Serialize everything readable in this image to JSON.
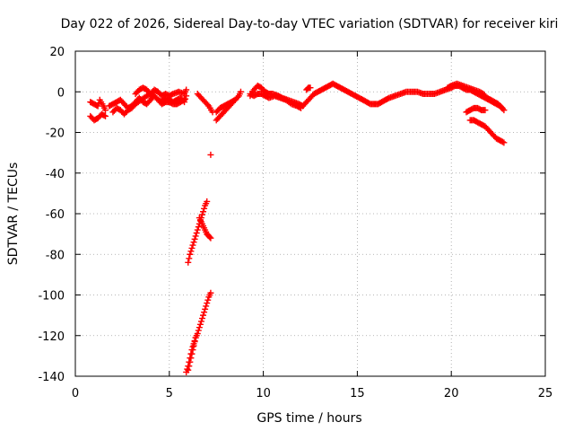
{
  "chart_data": {
    "type": "scatter",
    "title": "Day 022 of 2026, Sidereal Day-to-day VTEC variation (SDTVAR) for receiver kiri",
    "xlabel": "GPS time / hours",
    "ylabel": "SDTVAR / TECUs",
    "xlim": [
      0,
      25
    ],
    "ylim": [
      -140,
      20
    ],
    "xticks": [
      0,
      5,
      10,
      15,
      20,
      25
    ],
    "yticks": [
      20,
      0,
      -20,
      -40,
      -60,
      -80,
      -100,
      -120,
      -140
    ],
    "grid": true,
    "marker": "+",
    "color": "#ff0000",
    "series": [
      {
        "segments": [
          [
            [
              0.8,
              -5
            ],
            [
              1.0,
              -6
            ],
            [
              1.2,
              -7
            ],
            [
              1.3,
              -4
            ],
            [
              1.5,
              -7
            ],
            [
              1.6,
              -9
            ]
          ],
          [
            [
              0.8,
              -12
            ],
            [
              1.0,
              -14
            ],
            [
              1.2,
              -13
            ],
            [
              1.4,
              -11
            ],
            [
              1.6,
              -12
            ]
          ],
          [
            [
              1.8,
              -7
            ],
            [
              2.0,
              -6
            ],
            [
              2.2,
              -5
            ],
            [
              2.4,
              -4
            ],
            [
              2.6,
              -6
            ],
            [
              2.8,
              -8
            ],
            [
              3.0,
              -7
            ],
            [
              3.2,
              -5
            ],
            [
              3.4,
              -3
            ],
            [
              3.6,
              -5
            ],
            [
              3.8,
              -6
            ],
            [
              4.0,
              -4
            ],
            [
              4.2,
              -2
            ],
            [
              4.4,
              -4
            ],
            [
              4.6,
              -5
            ],
            [
              4.8,
              -3
            ],
            [
              5.0,
              -4
            ],
            [
              5.2,
              -5
            ],
            [
              5.4,
              -4
            ],
            [
              5.6,
              -3
            ],
            [
              5.8,
              -5
            ],
            [
              5.9,
              -2
            ]
          ],
          [
            [
              2.0,
              -10
            ],
            [
              2.2,
              -8
            ],
            [
              2.4,
              -9
            ],
            [
              2.6,
              -11
            ],
            [
              2.8,
              -9
            ],
            [
              3.0,
              -8
            ],
            [
              3.2,
              -6
            ],
            [
              3.5,
              -4
            ],
            [
              3.8,
              -2
            ],
            [
              4.0,
              -1
            ],
            [
              4.2,
              -2
            ],
            [
              4.4,
              -4
            ],
            [
              4.6,
              -6
            ],
            [
              4.8,
              -5
            ],
            [
              5.0,
              -5
            ],
            [
              5.2,
              -6
            ],
            [
              5.4,
              -6
            ],
            [
              5.6,
              -5
            ],
            [
              5.8,
              -4
            ]
          ],
          [
            [
              3.2,
              -1
            ],
            [
              3.4,
              1
            ],
            [
              3.6,
              2
            ],
            [
              3.8,
              1
            ],
            [
              4.0,
              -1
            ],
            [
              4.2,
              1
            ],
            [
              4.4,
              0
            ],
            [
              4.6,
              -2
            ],
            [
              4.8,
              -1
            ],
            [
              5.0,
              -2
            ],
            [
              5.2,
              -1
            ],
            [
              5.5,
              0
            ],
            [
              5.8,
              -1
            ],
            [
              5.9,
              1
            ]
          ],
          [
            [
              6.5,
              -1
            ],
            [
              6.7,
              -3
            ],
            [
              6.9,
              -5
            ],
            [
              7.1,
              -7
            ],
            [
              7.3,
              -10
            ]
          ],
          [
            [
              7.5,
              -14
            ],
            [
              7.7,
              -12
            ],
            [
              7.9,
              -10
            ],
            [
              8.1,
              -8
            ],
            [
              8.3,
              -6
            ],
            [
              8.5,
              -4
            ],
            [
              8.7,
              -2
            ],
            [
              8.8,
              0
            ]
          ],
          [
            [
              7.5,
              -10
            ],
            [
              7.7,
              -8
            ],
            [
              7.9,
              -7
            ],
            [
              8.1,
              -6
            ],
            [
              8.3,
              -5
            ],
            [
              8.5,
              -4
            ]
          ],
          [
            [
              7.2,
              -31
            ]
          ],
          [
            [
              6.0,
              -84
            ],
            [
              6.1,
              -80
            ],
            [
              6.2,
              -77
            ],
            [
              6.3,
              -74
            ],
            [
              6.4,
              -71
            ],
            [
              6.5,
              -68
            ],
            [
              6.6,
              -65
            ],
            [
              6.7,
              -62
            ],
            [
              6.8,
              -59
            ],
            [
              6.9,
              -56
            ],
            [
              7.0,
              -54
            ]
          ],
          [
            [
              6.6,
              -62
            ],
            [
              6.7,
              -64
            ],
            [
              6.8,
              -66
            ],
            [
              6.9,
              -68
            ],
            [
              7.0,
              -70
            ],
            [
              7.1,
              -71
            ],
            [
              7.2,
              -72
            ]
          ],
          [
            [
              5.9,
              -138
            ],
            [
              6.0,
              -135
            ],
            [
              6.1,
              -131
            ],
            [
              6.2,
              -127
            ],
            [
              6.3,
              -124
            ],
            [
              6.4,
              -121
            ],
            [
              6.5,
              -119
            ],
            [
              6.6,
              -116
            ],
            [
              6.7,
              -113
            ],
            [
              6.8,
              -110
            ],
            [
              6.9,
              -107
            ],
            [
              7.0,
              -104
            ],
            [
              7.1,
              -101
            ],
            [
              7.2,
              -99
            ]
          ],
          [
            [
              6.0,
              -137
            ],
            [
              6.1,
              -133
            ],
            [
              6.2,
              -129
            ],
            [
              6.3,
              -125
            ],
            [
              6.4,
              -121
            ]
          ],
          [
            [
              9.3,
              -2
            ],
            [
              9.5,
              1
            ],
            [
              9.7,
              3
            ],
            [
              9.9,
              2
            ],
            [
              10.1,
              0
            ],
            [
              10.3,
              -1
            ],
            [
              10.5,
              -1
            ],
            [
              10.8,
              -2
            ],
            [
              11.0,
              -3
            ],
            [
              11.3,
              -4
            ],
            [
              11.6,
              -5
            ],
            [
              11.9,
              -6
            ],
            [
              12.1,
              -7
            ],
            [
              12.3,
              -5
            ],
            [
              12.5,
              -3
            ],
            [
              12.7,
              -1
            ],
            [
              12.9,
              0
            ],
            [
              13.1,
              1
            ],
            [
              13.3,
              2
            ],
            [
              13.5,
              3
            ],
            [
              13.7,
              4
            ],
            [
              13.9,
              3
            ],
            [
              14.1,
              2
            ],
            [
              14.3,
              1
            ],
            [
              14.5,
              0
            ],
            [
              14.7,
              -1
            ],
            [
              14.9,
              -2
            ],
            [
              15.1,
              -3
            ],
            [
              15.3,
              -4
            ],
            [
              15.5,
              -5
            ],
            [
              15.7,
              -6
            ],
            [
              15.9,
              -6
            ],
            [
              16.1,
              -6
            ],
            [
              16.3,
              -5
            ],
            [
              16.5,
              -4
            ],
            [
              16.7,
              -3
            ],
            [
              17.0,
              -2
            ],
            [
              17.3,
              -1
            ],
            [
              17.6,
              0
            ],
            [
              17.9,
              0
            ],
            [
              18.2,
              0
            ],
            [
              18.5,
              -1
            ],
            [
              18.8,
              -1
            ],
            [
              19.1,
              -1
            ],
            [
              19.4,
              0
            ],
            [
              19.7,
              1
            ],
            [
              20.0,
              2
            ],
            [
              20.2,
              3
            ],
            [
              20.4,
              3
            ],
            [
              20.6,
              2
            ],
            [
              20.8,
              1
            ],
            [
              21.0,
              1
            ],
            [
              21.2,
              0
            ],
            [
              21.4,
              -1
            ],
            [
              21.6,
              -2
            ],
            [
              21.8,
              -3
            ],
            [
              22.0,
              -4
            ],
            [
              22.2,
              -5
            ],
            [
              22.4,
              -6
            ],
            [
              22.6,
              -7
            ],
            [
              22.8,
              -9
            ]
          ],
          [
            [
              9.3,
              -1
            ],
            [
              9.5,
              -2
            ],
            [
              9.7,
              -1
            ],
            [
              9.9,
              -1
            ],
            [
              10.1,
              -2
            ],
            [
              10.3,
              -3
            ],
            [
              10.6,
              -2
            ],
            [
              10.9,
              -3
            ],
            [
              11.2,
              -4
            ],
            [
              11.5,
              -6
            ],
            [
              11.8,
              -7
            ],
            [
              12.0,
              -8
            ]
          ],
          [
            [
              12.3,
              1
            ],
            [
              12.4,
              2
            ],
            [
              12.5,
              2
            ]
          ],
          [
            [
              19.8,
              2
            ],
            [
              20.0,
              3
            ],
            [
              20.3,
              4
            ],
            [
              20.6,
              3
            ],
            [
              20.9,
              2
            ],
            [
              21.2,
              1
            ],
            [
              21.5,
              0
            ],
            [
              21.7,
              -1
            ],
            [
              21.9,
              -3
            ],
            [
              22.1,
              -4
            ],
            [
              22.3,
              -5
            ],
            [
              22.5,
              -6
            ],
            [
              22.7,
              -8
            ]
          ],
          [
            [
              20.8,
              -10
            ],
            [
              21.0,
              -9
            ],
            [
              21.2,
              -8
            ],
            [
              21.4,
              -8
            ],
            [
              21.6,
              -9
            ],
            [
              21.8,
              -9
            ]
          ],
          [
            [
              21.0,
              -14
            ],
            [
              21.2,
              -14
            ],
            [
              21.4,
              -15
            ],
            [
              21.6,
              -16
            ],
            [
              21.8,
              -17
            ],
            [
              22.0,
              -19
            ],
            [
              22.2,
              -21
            ],
            [
              22.4,
              -23
            ],
            [
              22.6,
              -24
            ],
            [
              22.8,
              -25
            ]
          ]
        ]
      }
    ]
  }
}
